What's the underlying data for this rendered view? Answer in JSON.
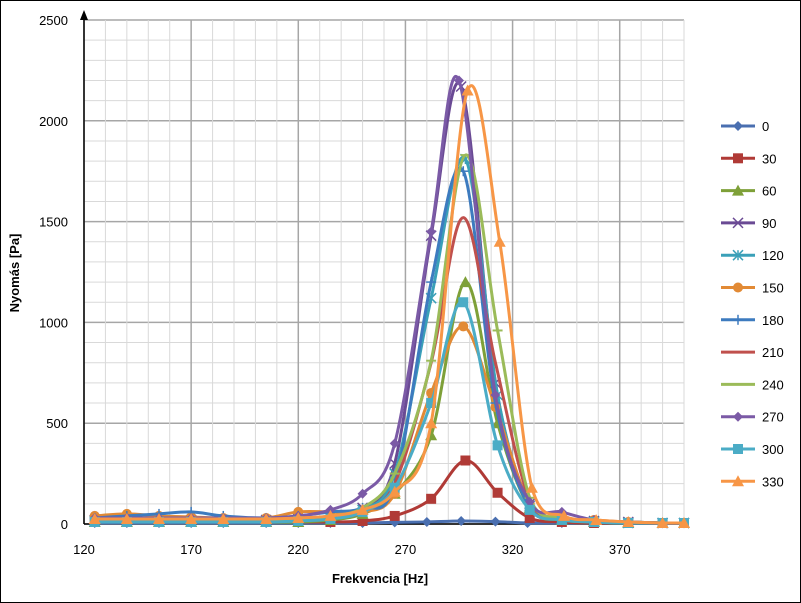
{
  "chart_data": {
    "type": "line",
    "title": "",
    "xlabel": "Frekvencia [Hz]",
    "ylabel": "Nyomás [Pa]",
    "xlim": [
      120,
      400
    ],
    "ylim": [
      0,
      2500
    ],
    "xticks": [
      120,
      170,
      220,
      270,
      320,
      370
    ],
    "yticks": [
      0,
      500,
      1000,
      1500,
      2000,
      2500
    ],
    "grid": true,
    "legend_position": "right",
    "series": [
      {
        "name": "0",
        "color": "#4a6fb0",
        "marker": "diamond",
        "points": [
          [
            125,
            5
          ],
          [
            140,
            5
          ],
          [
            155,
            5
          ],
          [
            170,
            5
          ],
          [
            185,
            5
          ],
          [
            205,
            5
          ],
          [
            220,
            5
          ],
          [
            235,
            5
          ],
          [
            250,
            5
          ],
          [
            265,
            8
          ],
          [
            280,
            10
          ],
          [
            296,
            15
          ],
          [
            312,
            12
          ],
          [
            327,
            5
          ],
          [
            343,
            5
          ],
          [
            358,
            5
          ],
          [
            374,
            5
          ],
          [
            390,
            3
          ],
          [
            400,
            3
          ]
        ]
      },
      {
        "name": "30",
        "color": "#b03a36",
        "marker": "square",
        "points": [
          [
            125,
            10
          ],
          [
            140,
            10
          ],
          [
            155,
            10
          ],
          [
            170,
            10
          ],
          [
            185,
            10
          ],
          [
            205,
            10
          ],
          [
            220,
            10
          ],
          [
            235,
            10
          ],
          [
            250,
            15
          ],
          [
            265,
            40
          ],
          [
            282,
            125
          ],
          [
            298,
            315
          ],
          [
            313,
            155
          ],
          [
            328,
            30
          ],
          [
            343,
            10
          ],
          [
            358,
            5
          ],
          [
            374,
            5
          ],
          [
            390,
            5
          ],
          [
            400,
            5
          ]
        ]
      },
      {
        "name": "60",
        "color": "#7ea038",
        "marker": "triangle",
        "points": [
          [
            125,
            10
          ],
          [
            140,
            10
          ],
          [
            155,
            10
          ],
          [
            170,
            10
          ],
          [
            185,
            10
          ],
          [
            205,
            10
          ],
          [
            220,
            10
          ],
          [
            235,
            20
          ],
          [
            250,
            50
          ],
          [
            265,
            150
          ],
          [
            282,
            440
          ],
          [
            298,
            1200
          ],
          [
            313,
            500
          ],
          [
            328,
            80
          ],
          [
            343,
            20
          ],
          [
            358,
            10
          ],
          [
            374,
            5
          ],
          [
            390,
            5
          ],
          [
            400,
            5
          ]
        ]
      },
      {
        "name": "90",
        "color": "#6a4a94",
        "marker": "x",
        "points": [
          [
            125,
            20
          ],
          [
            140,
            20
          ],
          [
            155,
            20
          ],
          [
            170,
            20
          ],
          [
            185,
            20
          ],
          [
            205,
            20
          ],
          [
            220,
            25
          ],
          [
            235,
            40
          ],
          [
            250,
            80
          ],
          [
            265,
            300
          ],
          [
            282,
            1430
          ],
          [
            296,
            2170
          ],
          [
            312,
            700
          ],
          [
            328,
            100
          ],
          [
            343,
            30
          ],
          [
            358,
            15
          ],
          [
            374,
            10
          ],
          [
            390,
            5
          ],
          [
            400,
            5
          ]
        ]
      },
      {
        "name": "120",
        "color": "#3aa0b8",
        "marker": "asterisk",
        "points": [
          [
            125,
            15
          ],
          [
            140,
            15
          ],
          [
            155,
            15
          ],
          [
            170,
            15
          ],
          [
            185,
            15
          ],
          [
            205,
            15
          ],
          [
            220,
            20
          ],
          [
            235,
            35
          ],
          [
            250,
            70
          ],
          [
            265,
            250
          ],
          [
            282,
            1120
          ],
          [
            298,
            1810
          ],
          [
            313,
            640
          ],
          [
            328,
            90
          ],
          [
            343,
            25
          ],
          [
            358,
            10
          ],
          [
            374,
            5
          ],
          [
            390,
            5
          ],
          [
            400,
            5
          ]
        ]
      },
      {
        "name": "150",
        "color": "#e28a35",
        "marker": "circle",
        "points": [
          [
            125,
            40
          ],
          [
            140,
            50
          ],
          [
            155,
            40
          ],
          [
            170,
            35
          ],
          [
            185,
            30
          ],
          [
            205,
            30
          ],
          [
            220,
            60
          ],
          [
            235,
            60
          ],
          [
            250,
            60
          ],
          [
            265,
            150
          ],
          [
            282,
            650
          ],
          [
            297,
            980
          ],
          [
            312,
            580
          ],
          [
            328,
            100
          ],
          [
            343,
            30
          ],
          [
            358,
            20
          ],
          [
            374,
            10
          ],
          [
            390,
            5
          ],
          [
            400,
            5
          ]
        ]
      },
      {
        "name": "180",
        "color": "#3d7bbf",
        "marker": "plus",
        "points": [
          [
            125,
            30
          ],
          [
            140,
            40
          ],
          [
            155,
            50
          ],
          [
            170,
            60
          ],
          [
            185,
            40
          ],
          [
            205,
            30
          ],
          [
            220,
            40
          ],
          [
            235,
            60
          ],
          [
            250,
            80
          ],
          [
            265,
            200
          ],
          [
            282,
            1200
          ],
          [
            297,
            1750
          ],
          [
            312,
            600
          ],
          [
            328,
            80
          ],
          [
            343,
            30
          ],
          [
            358,
            15
          ],
          [
            374,
            10
          ],
          [
            390,
            5
          ],
          [
            400,
            5
          ]
        ]
      },
      {
        "name": "210",
        "color": "#c0504d",
        "marker": "none",
        "points": [
          [
            125,
            15
          ],
          [
            140,
            15
          ],
          [
            155,
            15
          ],
          [
            170,
            15
          ],
          [
            185,
            15
          ],
          [
            205,
            15
          ],
          [
            220,
            20
          ],
          [
            235,
            30
          ],
          [
            250,
            60
          ],
          [
            265,
            200
          ],
          [
            282,
            800
          ],
          [
            297,
            1520
          ],
          [
            312,
            800
          ],
          [
            328,
            120
          ],
          [
            343,
            30
          ],
          [
            358,
            15
          ],
          [
            374,
            10
          ],
          [
            390,
            5
          ],
          [
            400,
            5
          ]
        ]
      },
      {
        "name": "240",
        "color": "#9bbb59",
        "marker": "dash",
        "points": [
          [
            125,
            15
          ],
          [
            140,
            15
          ],
          [
            155,
            15
          ],
          [
            170,
            15
          ],
          [
            185,
            15
          ],
          [
            205,
            15
          ],
          [
            220,
            20
          ],
          [
            235,
            40
          ],
          [
            250,
            80
          ],
          [
            265,
            250
          ],
          [
            282,
            810
          ],
          [
            298,
            1830
          ],
          [
            313,
            960
          ],
          [
            328,
            130
          ],
          [
            343,
            30
          ],
          [
            358,
            15
          ],
          [
            374,
            10
          ],
          [
            390,
            5
          ],
          [
            400,
            5
          ]
        ]
      },
      {
        "name": "270",
        "color": "#7b5aa6",
        "marker": "diamond",
        "points": [
          [
            125,
            30
          ],
          [
            140,
            30
          ],
          [
            155,
            30
          ],
          [
            170,
            30
          ],
          [
            185,
            30
          ],
          [
            205,
            30
          ],
          [
            220,
            40
          ],
          [
            235,
            70
          ],
          [
            250,
            150
          ],
          [
            265,
            400
          ],
          [
            282,
            1450
          ],
          [
            295,
            2200
          ],
          [
            312,
            640
          ],
          [
            328,
            110
          ],
          [
            343,
            60
          ],
          [
            358,
            20
          ],
          [
            374,
            10
          ],
          [
            390,
            5
          ],
          [
            400,
            5
          ]
        ]
      },
      {
        "name": "300",
        "color": "#4bacc6",
        "marker": "square",
        "points": [
          [
            125,
            10
          ],
          [
            140,
            10
          ],
          [
            155,
            10
          ],
          [
            170,
            10
          ],
          [
            185,
            10
          ],
          [
            205,
            10
          ],
          [
            220,
            15
          ],
          [
            235,
            25
          ],
          [
            250,
            60
          ],
          [
            265,
            180
          ],
          [
            282,
            600
          ],
          [
            297,
            1100
          ],
          [
            313,
            390
          ],
          [
            328,
            70
          ],
          [
            343,
            20
          ],
          [
            358,
            10
          ],
          [
            374,
            5
          ],
          [
            390,
            5
          ],
          [
            400,
            5
          ]
        ]
      },
      {
        "name": "330",
        "color": "#f79646",
        "marker": "triangle",
        "points": [
          [
            125,
            25
          ],
          [
            140,
            25
          ],
          [
            155,
            25
          ],
          [
            170,
            25
          ],
          [
            185,
            25
          ],
          [
            205,
            25
          ],
          [
            220,
            30
          ],
          [
            235,
            40
          ],
          [
            250,
            70
          ],
          [
            265,
            160
          ],
          [
            282,
            500
          ],
          [
            299,
            2150
          ],
          [
            314,
            1400
          ],
          [
            329,
            180
          ],
          [
            344,
            40
          ],
          [
            359,
            20
          ],
          [
            374,
            10
          ],
          [
            390,
            5
          ],
          [
            400,
            5
          ]
        ]
      }
    ]
  }
}
